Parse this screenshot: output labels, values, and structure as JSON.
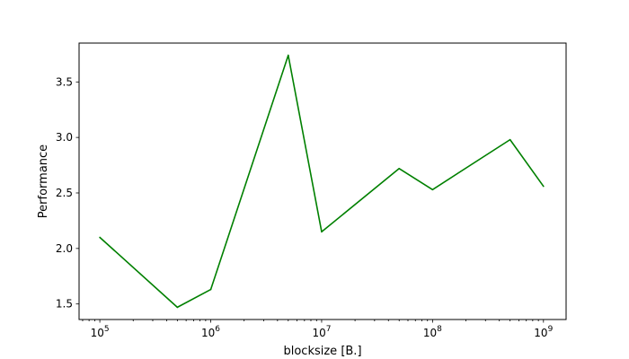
{
  "chart_data": {
    "type": "line",
    "title": "",
    "xlabel": "blocksize [B.]",
    "ylabel": "Performance",
    "x_scale": "log",
    "xlim": [
      65000,
      1600000000
    ],
    "ylim": [
      1.36,
      3.85
    ],
    "x_ticks": [
      {
        "value": 100000,
        "base": "10",
        "exp": "5"
      },
      {
        "value": 1000000,
        "base": "10",
        "exp": "6"
      },
      {
        "value": 10000000,
        "base": "10",
        "exp": "7"
      },
      {
        "value": 100000000,
        "base": "10",
        "exp": "8"
      },
      {
        "value": 1000000000,
        "base": "10",
        "exp": "9"
      }
    ],
    "y_ticks": [
      "1.5",
      "2.0",
      "2.5",
      "3.0",
      "3.5"
    ],
    "grid": false,
    "series": [
      {
        "color": "#008000",
        "points": [
          {
            "x": 100000,
            "y": 2.1
          },
          {
            "x": 500000,
            "y": 1.47
          },
          {
            "x": 1000000,
            "y": 1.63
          },
          {
            "x": 5000000,
            "y": 3.74
          },
          {
            "x": 10000000,
            "y": 2.15
          },
          {
            "x": 50000000,
            "y": 2.72
          },
          {
            "x": 100000000,
            "y": 2.53
          },
          {
            "x": 500000000,
            "y": 2.98
          },
          {
            "x": 1000000000,
            "y": 2.56
          }
        ]
      }
    ]
  }
}
